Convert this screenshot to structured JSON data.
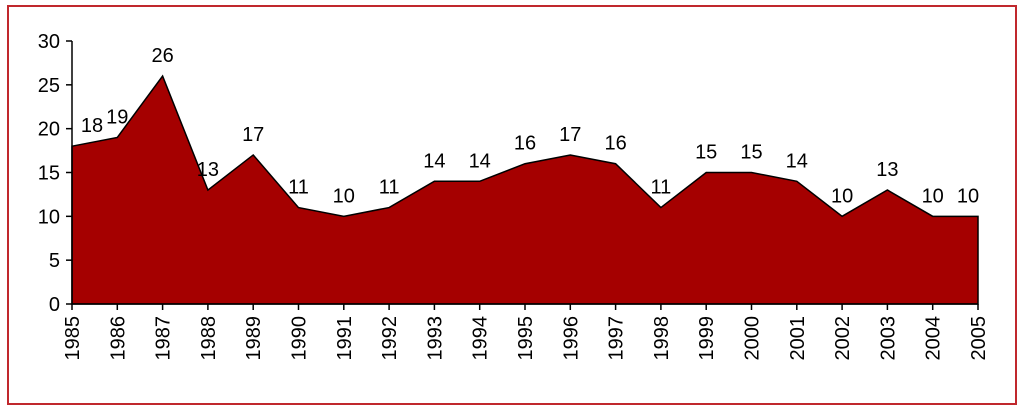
{
  "chart_data": {
    "type": "area",
    "categories": [
      "1985",
      "1986",
      "1987",
      "1988",
      "1989",
      "1990",
      "1991",
      "1992",
      "1993",
      "1994",
      "1995",
      "1996",
      "1997",
      "1998",
      "1999",
      "2000",
      "2001",
      "2002",
      "2003",
      "2004",
      "2005"
    ],
    "values": [
      18,
      19,
      26,
      13,
      17,
      11,
      10,
      11,
      14,
      14,
      16,
      17,
      16,
      11,
      15,
      15,
      14,
      10,
      13,
      10,
      10
    ],
    "color": "#a50000",
    "ylim": [
      0,
      30
    ],
    "yticks": [
      0,
      5,
      10,
      15,
      20,
      25,
      30
    ],
    "grid": false
  }
}
